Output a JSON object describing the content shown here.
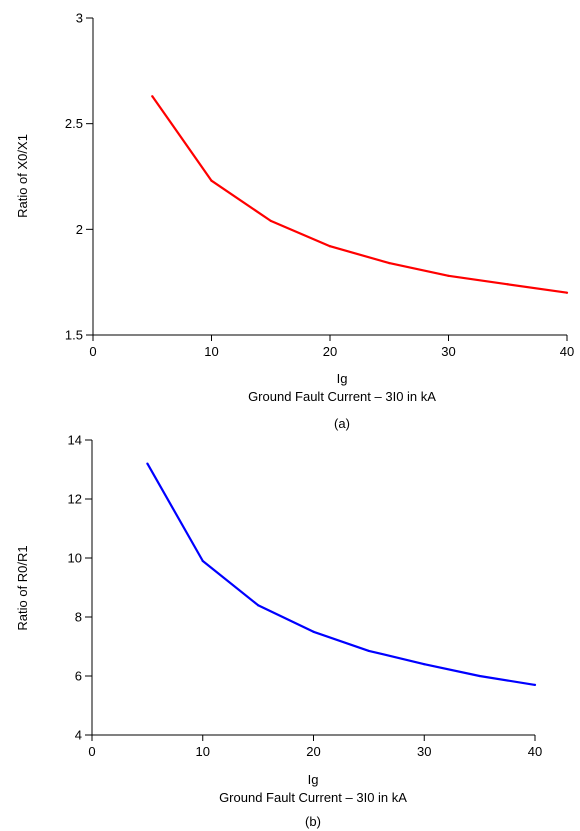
{
  "chart_data": [
    {
      "type": "line",
      "caption": "(a)",
      "xlabel_line1": "Ig",
      "xlabel_line2": "Ground Fault Current – 3I0 in kA",
      "ylabel": "Ratio of X0/X1",
      "xlim": [
        0,
        40
      ],
      "ylim": [
        1.5,
        3
      ],
      "xticks": [
        0,
        10,
        20,
        30,
        40
      ],
      "yticks": [
        1.5,
        2,
        2.5,
        3
      ],
      "ytick_labels": [
        "1.5",
        "2",
        "2.5",
        "3"
      ],
      "grid": false,
      "series": [
        {
          "color": "#ff0000",
          "x": [
            5,
            10,
            15,
            20,
            25,
            30,
            35,
            40
          ],
          "y": [
            2.63,
            2.23,
            2.04,
            1.92,
            1.84,
            1.78,
            1.74,
            1.7
          ]
        }
      ]
    },
    {
      "type": "line",
      "caption": "(b)",
      "xlabel_line1": "Ig",
      "xlabel_line2": "Ground Fault Current – 3I0 in kA",
      "ylabel": "Ratio of R0/R1",
      "xlim": [
        0,
        40
      ],
      "ylim": [
        4,
        14
      ],
      "xticks": [
        0,
        10,
        20,
        30,
        40
      ],
      "yticks": [
        4,
        6,
        8,
        10,
        12,
        14
      ],
      "ytick_labels": [
        "4",
        "6",
        "8",
        "10",
        "12",
        "14"
      ],
      "grid": false,
      "series": [
        {
          "color": "#0000ff",
          "x": [
            5,
            10,
            15,
            20,
            25,
            30,
            35,
            40
          ],
          "y": [
            13.2,
            9.9,
            8.4,
            7.5,
            6.85,
            6.4,
            6.0,
            5.7
          ]
        }
      ]
    }
  ]
}
